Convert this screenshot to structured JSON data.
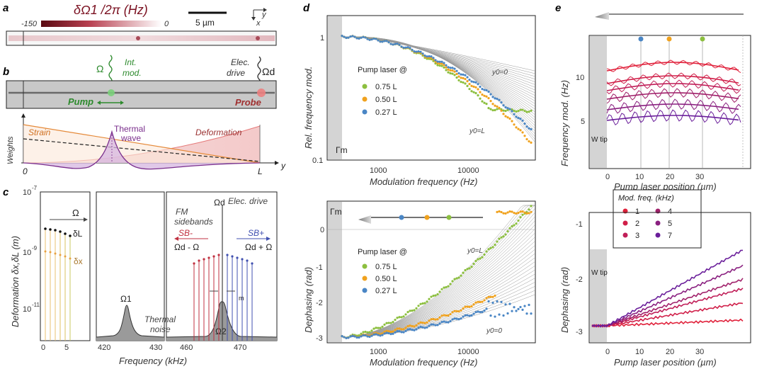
{
  "panels": {
    "a": {
      "label": "a",
      "colorbar_title": "δΩ1 /2π (Hz)",
      "colorbar_min": "-150",
      "colorbar_max": "0",
      "scalebar": "5 µm",
      "axis_y": "y",
      "axis_x": "x"
    },
    "b": {
      "label": "b",
      "omega": "Ω",
      "int_mod": "Int.",
      "int_mod2": "mod.",
      "elec_drive": "Elec.",
      "elec_drive2": "drive",
      "omega_d": "Ωd",
      "pump": "Pump",
      "probe": "Probe",
      "strain": "Strain",
      "thermal": "Thermal",
      "thermal2": "wave",
      "deformation": "Deformation",
      "weights": "Weights",
      "x0": "0",
      "xL": "L",
      "xy": "y"
    },
    "c": {
      "label": "c",
      "ylabel": "Deformation δx,δL (m)",
      "xlabel": "Frequency (kHz)",
      "yticks": [
        "10",
        "10",
        "10"
      ],
      "yexps": [
        "-7",
        "-9",
        "-11"
      ],
      "xticks_left": [
        "0",
        "5"
      ],
      "xticks_mid": [
        "420",
        "430"
      ],
      "xticks_right": [
        "460",
        "470"
      ],
      "omega": "Ω",
      "dL": "δL",
      "dx": "δx",
      "omega1": "Ω1",
      "thermal": "Thermal",
      "thermal2": "noise",
      "omega2": "Ω2",
      "omegad": "Ωd",
      "elec_drive": "Elec. drive",
      "fm": "FM",
      "sidebands": "sidebands",
      "sbm": "SB-",
      "sbp": "SB+",
      "wdmw": "Ωd - Ω",
      "wdpw": "Ωd + Ω",
      "m": "m"
    },
    "d": {
      "label": "d",
      "top_ylabel": "Rel. frequency mod.",
      "bot_ylabel": "Dephasing (rad)",
      "xlabel": "Modulation frequency (Hz)",
      "top_yticks": [
        "1",
        "0.1"
      ],
      "bot_yticks": [
        "0",
        "-1",
        "-2",
        "-3"
      ],
      "xticks": [
        "1000",
        "10000"
      ],
      "gamma_m": "Γm",
      "y0_0": "y0=0",
      "y0_L": "y0=L",
      "legend_title": "Pump laser @",
      "legend": [
        {
          "label": "0.75 L",
          "color": "#8cbf3f"
        },
        {
          "label": "0.50 L",
          "color": "#f0a21e"
        },
        {
          "label": "0.27 L",
          "color": "#4a86c5"
        }
      ]
    },
    "e": {
      "label": "e",
      "top_ylabel": "Frequency mod. (Hz)",
      "bot_ylabel": "Dephasing (rad)",
      "xlabel": "Pump laser position (µm)",
      "top_yticks": [
        "10",
        "5"
      ],
      "bot_yticks": [
        "-1",
        "-2",
        "-3"
      ],
      "xticks": [
        "0",
        "10",
        "20",
        "30"
      ],
      "w_tip": "W tip",
      "legend_title": "Mod. freq. (kHz)",
      "legend": [
        {
          "label": "1",
          "color": "#e0203a"
        },
        {
          "label": "4",
          "color": "#a0206a"
        },
        {
          "label": "2",
          "color": "#d01e48"
        },
        {
          "label": "5",
          "color": "#8a2080"
        },
        {
          "label": "3",
          "color": "#c01e58"
        },
        {
          "label": "7",
          "color": "#6a1e9a"
        }
      ]
    }
  }
}
